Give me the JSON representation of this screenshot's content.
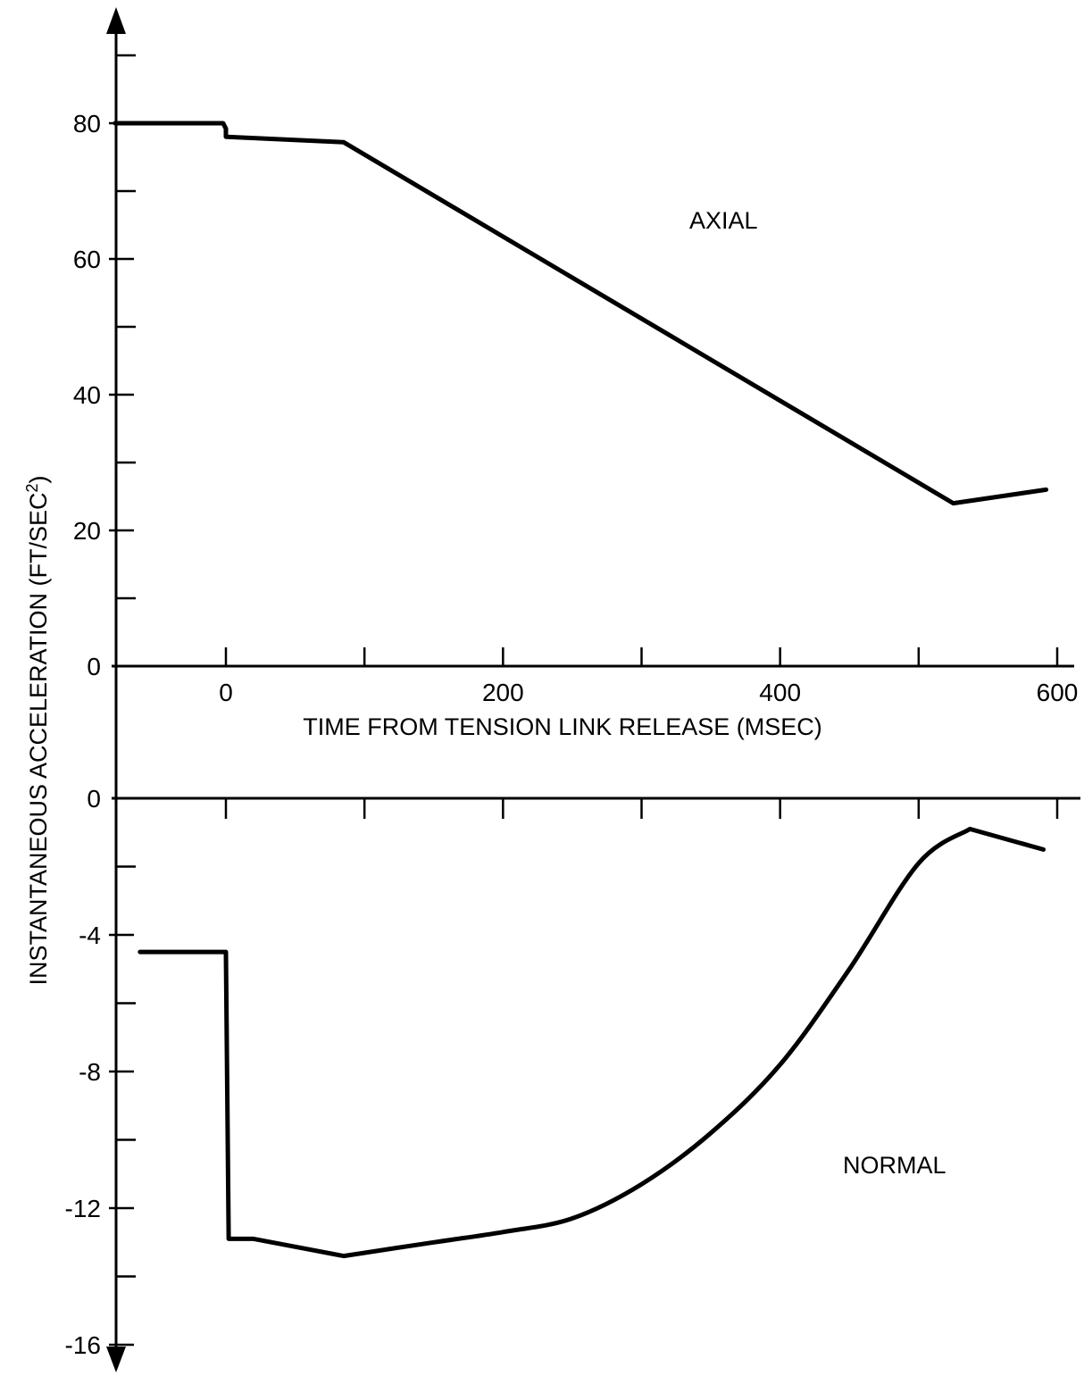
{
  "shared": {
    "ylabel_main": "INSTANTANEOUS ACCELERATION (FT/SEC",
    "ylabel_sup": "2",
    "ylabel_close": ")"
  },
  "chart_data": [
    {
      "type": "line",
      "title": "",
      "annotation": "AXIAL",
      "xlabel": "TIME FROM TENSION LINK RELEASE (MSEC)",
      "xlim": [
        -80,
        620
      ],
      "ylim": [
        0,
        92
      ],
      "x_tick_labels": [
        "0",
        "200",
        "400",
        "600"
      ],
      "x_tick_values": [
        0,
        200,
        400,
        600
      ],
      "x_minor_ticks": [
        0,
        100,
        200,
        300,
        400,
        500,
        600
      ],
      "y_tick_labels": [
        "0",
        "20",
        "40",
        "60",
        "80"
      ],
      "y_tick_values": [
        0,
        20,
        40,
        60,
        80
      ],
      "y_minor_ticks": [
        10,
        30,
        50,
        70,
        90
      ],
      "series": [
        {
          "x": [
            -80,
            -2,
            0,
            0,
            85,
            525,
            592
          ],
          "y": [
            80,
            80,
            79.2,
            78,
            77.2,
            24,
            26
          ]
        }
      ]
    },
    {
      "type": "line",
      "title": "",
      "annotation": "NORMAL",
      "xlabel": "",
      "xlim": [
        -80,
        620
      ],
      "ylim": [
        -16.8,
        0.3
      ],
      "x_major_ticks": [
        0,
        100,
        200,
        300,
        400,
        500,
        600
      ],
      "y_tick_labels": [
        "0",
        "-4",
        "-8",
        "-12",
        "-16"
      ],
      "y_tick_values": [
        0,
        -4,
        -8,
        -12,
        -16
      ],
      "y_minor_ticks": [
        -2,
        -6,
        -10,
        -14
      ],
      "series": [
        {
          "x": [
            -62,
            0,
            2,
            20,
            85,
            150,
            200,
            250,
            300,
            350,
            400,
            450,
            500,
            537,
            590
          ],
          "y": [
            -4.5,
            -4.5,
            -12.9,
            -12.9,
            -13.4,
            -13.0,
            -12.7,
            -12.3,
            -11.3,
            -9.8,
            -7.8,
            -5.0,
            -1.9,
            -0.9,
            -1.5
          ]
        }
      ]
    }
  ]
}
